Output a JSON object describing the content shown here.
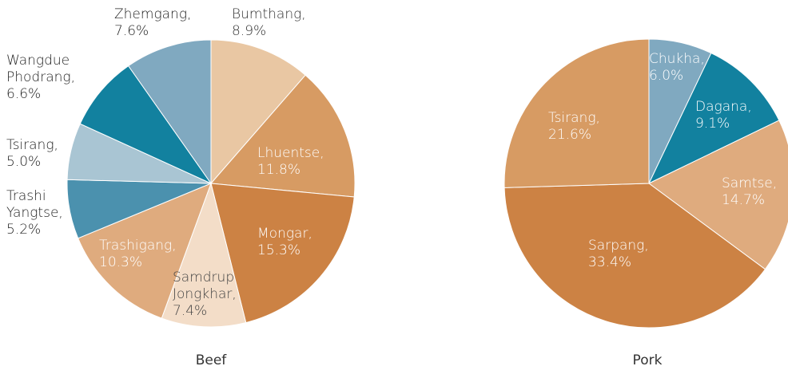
{
  "chart_data": [
    {
      "type": "pie",
      "title": "Beef",
      "categories": [
        "Bumthang,",
        "Lhuentse,",
        "Mongar,",
        "Samdrup Jongkhar,",
        "Trashigang,",
        "Trashi Yangtse,",
        "Tsirang,",
        "Wangdue Phodrang,",
        "Zhemgang,"
      ],
      "values": [
        8.9,
        11.8,
        15.3,
        7.4,
        10.3,
        5.2,
        5.0,
        6.6,
        7.6
      ],
      "value_labels": [
        "8.9%",
        "11.8%",
        "15.3%",
        "7.4%",
        "10.3%",
        "5.2%",
        "5.0%",
        "6.6%",
        "7.6%"
      ],
      "colors": [
        "#e9c7a3",
        "#d79b63",
        "#cc8244",
        "#f3ddc8",
        "#dfab7e",
        "#4b91ae",
        "#a9c5d3",
        "#12819f",
        "#80a9c0"
      ]
    },
    {
      "type": "pie",
      "title": "Pork",
      "categories": [
        "Chukha,",
        "Dagana,",
        "Samtse,",
        "Sarpang,",
        "Tsirang,"
      ],
      "values": [
        6.0,
        9.1,
        14.7,
        33.4,
        21.6
      ],
      "value_labels": [
        "6.0%",
        "9.1%",
        "14.7%",
        "33.4%",
        "21.6%"
      ],
      "colors": [
        "#80a9c0",
        "#12819f",
        "#dfab7e",
        "#cc8244",
        "#d79b63"
      ]
    }
  ]
}
